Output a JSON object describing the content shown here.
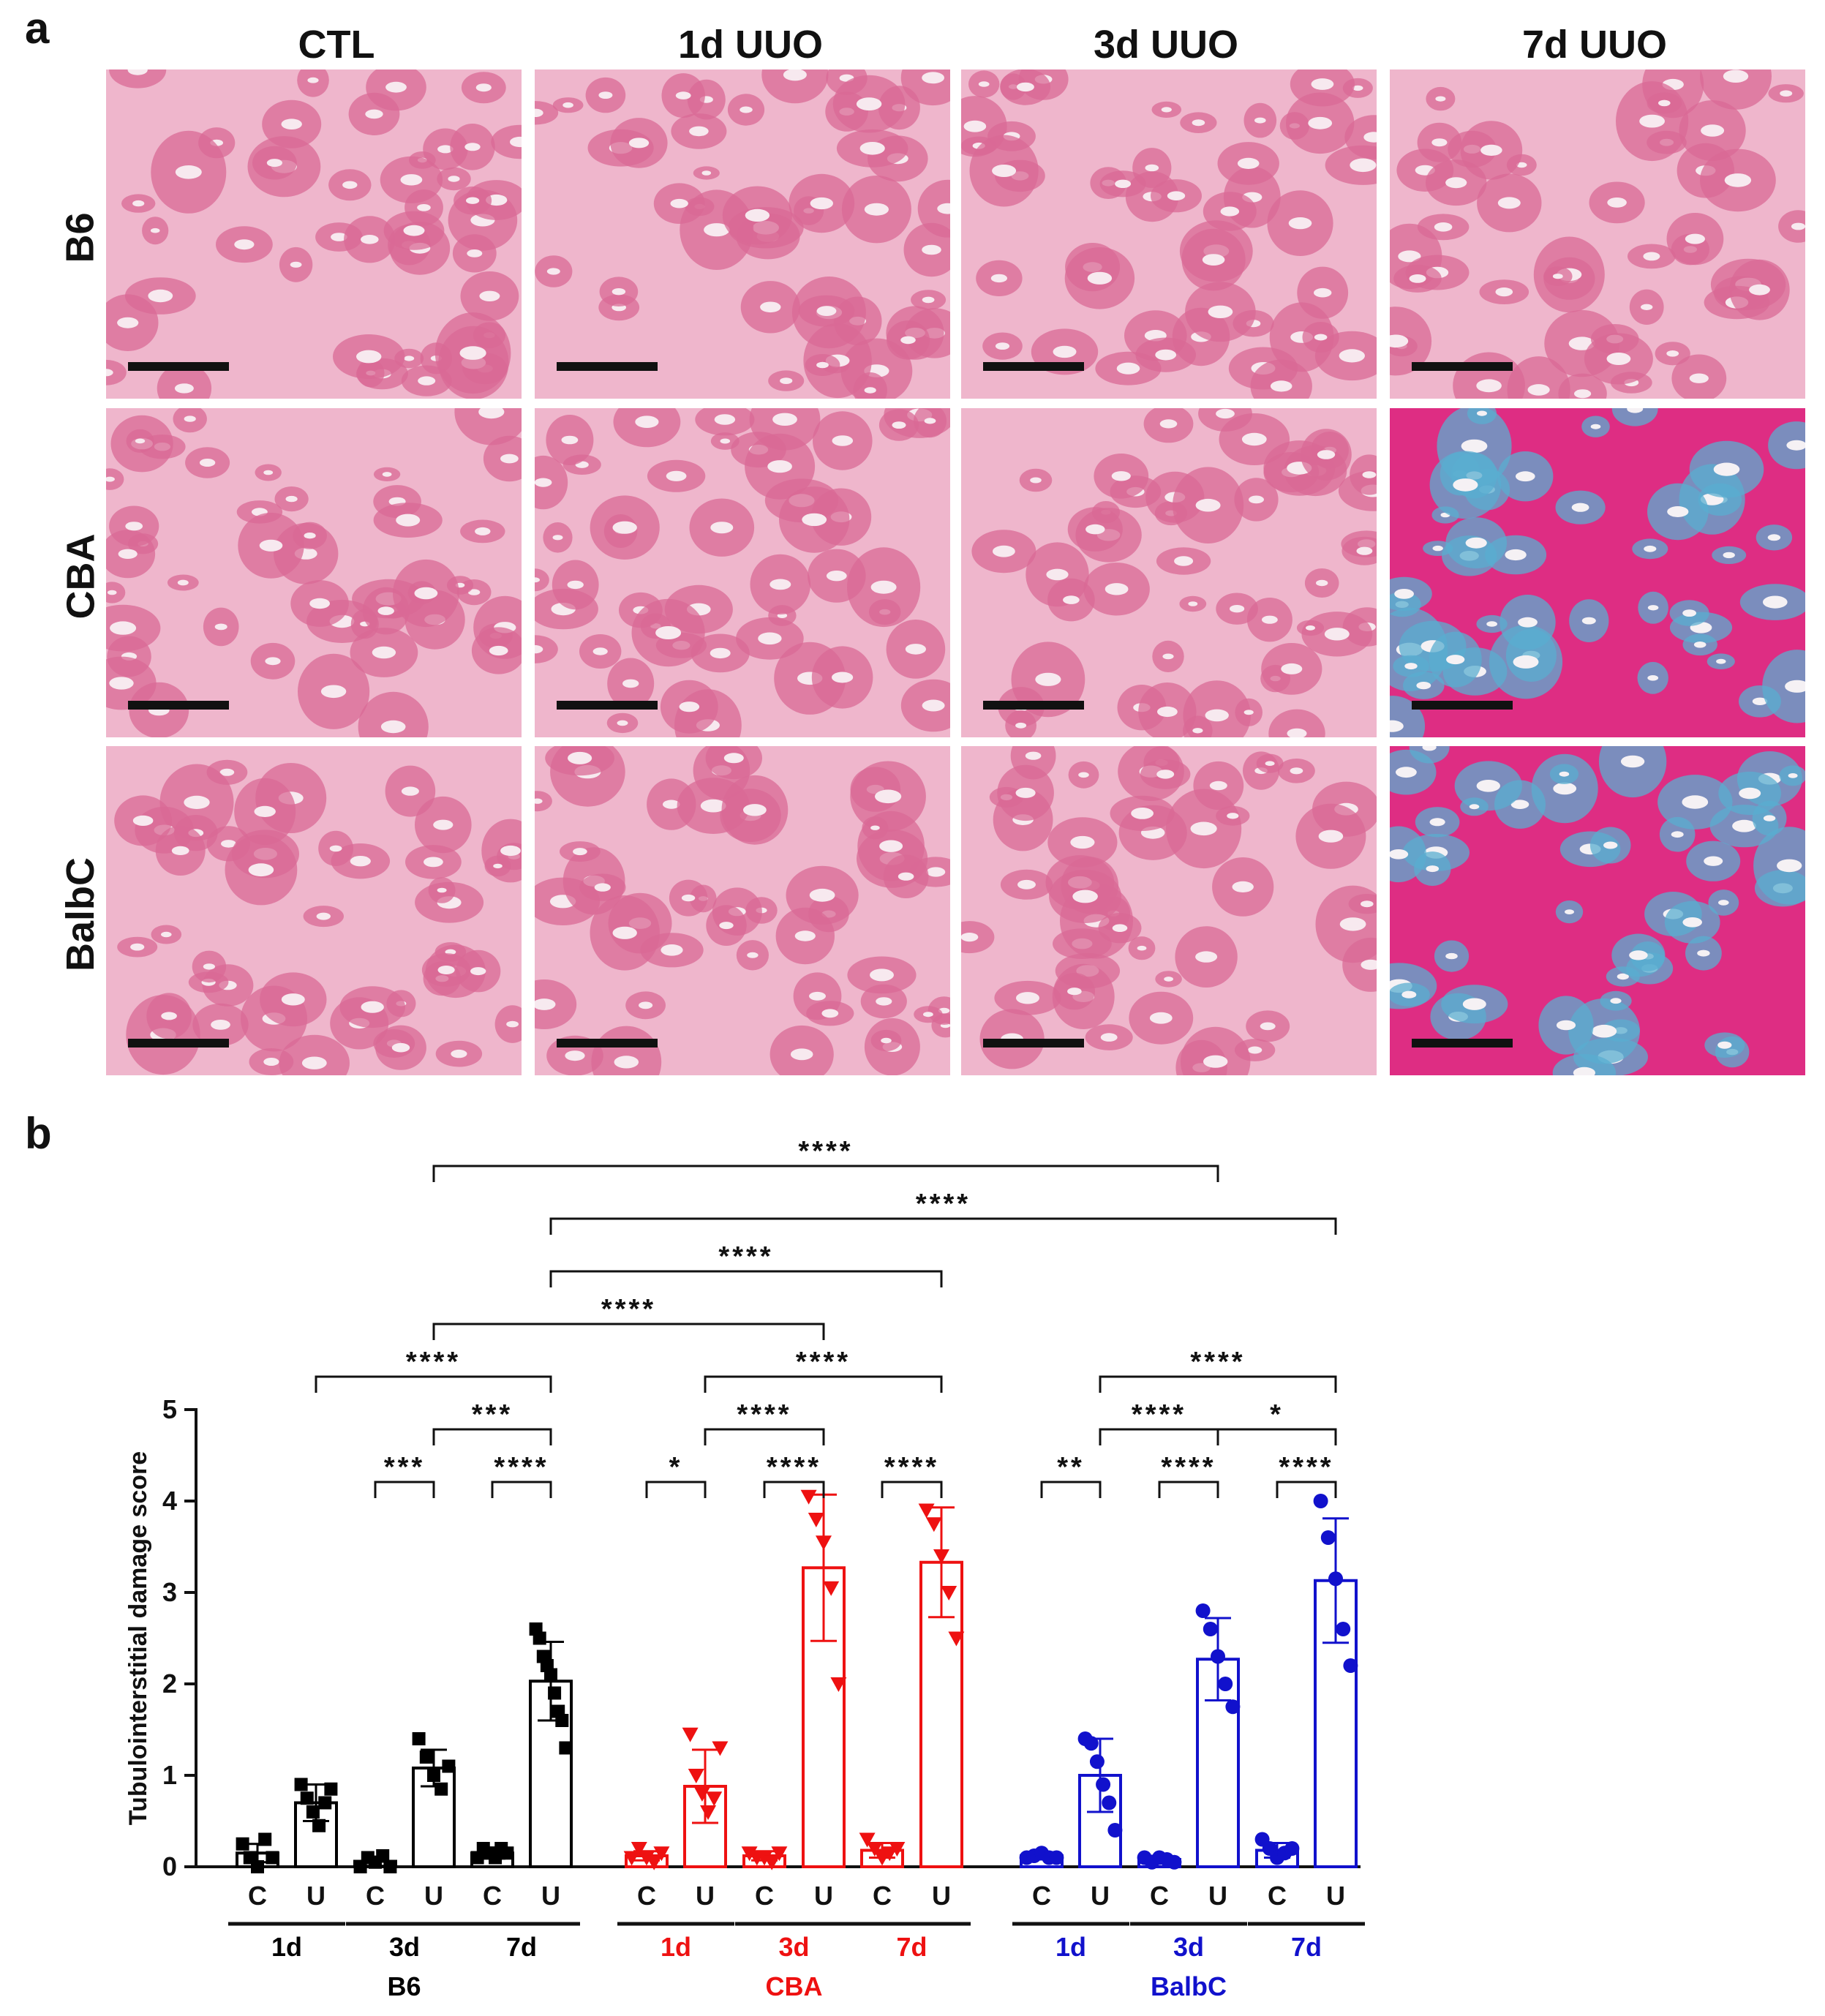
{
  "panel_a": {
    "letter": "a",
    "columns": [
      "CTL",
      "1d UUO",
      "3d UUO",
      "7d UUO"
    ],
    "rows": [
      "B6",
      "CBA",
      "BalbC"
    ],
    "palette": {
      "normal": [
        "#efb6cc",
        "#d96a96",
        "#f7e9ef"
      ],
      "fibrotic": [
        "#de2d83",
        "#5aaed0",
        "#f5f1f4"
      ]
    }
  },
  "chart_data": {
    "letter": "b",
    "type": "bar",
    "ylabel": "Tubulointerstitial damage score",
    "ylim": [
      0,
      5
    ],
    "yticks": [
      0,
      1,
      2,
      3,
      4,
      5
    ],
    "groups": [
      {
        "name": "B6",
        "color": "#000000",
        "marker": "square",
        "timepoints": [
          "1d",
          "3d",
          "7d"
        ]
      },
      {
        "name": "CBA",
        "color": "#ee1111",
        "marker": "triangle",
        "timepoints": [
          "1d",
          "3d",
          "7d"
        ]
      },
      {
        "name": "BalbC",
        "color": "#1111cc",
        "marker": "circle",
        "timepoints": [
          "1d",
          "3d",
          "7d"
        ]
      }
    ],
    "bar_labels": [
      "C",
      "U"
    ],
    "bars": [
      {
        "group": "B6",
        "timepoint": "1d",
        "kind": "C",
        "mean": 0.15,
        "sd": 0.1,
        "points": [
          0.25,
          0.1,
          0.0,
          0.3,
          0.1
        ]
      },
      {
        "group": "B6",
        "timepoint": "1d",
        "kind": "U",
        "mean": 0.7,
        "sd": 0.2,
        "points": [
          0.9,
          0.75,
          0.6,
          0.45,
          0.7,
          0.85
        ]
      },
      {
        "group": "B6",
        "timepoint": "3d",
        "kind": "C",
        "mean": 0.06,
        "sd": 0.05,
        "points": [
          0.0,
          0.1,
          0.05,
          0.12,
          0.0
        ]
      },
      {
        "group": "B6",
        "timepoint": "3d",
        "kind": "U",
        "mean": 1.08,
        "sd": 0.2,
        "points": [
          1.4,
          1.2,
          1.0,
          0.85,
          1.1
        ]
      },
      {
        "group": "B6",
        "timepoint": "7d",
        "kind": "C",
        "mean": 0.15,
        "sd": 0.06,
        "points": [
          0.1,
          0.2,
          0.15,
          0.1,
          0.2,
          0.15
        ]
      },
      {
        "group": "B6",
        "timepoint": "7d",
        "kind": "U",
        "mean": 2.03,
        "sd": 0.43,
        "points": [
          2.6,
          2.5,
          2.3,
          2.2,
          2.1,
          1.9,
          1.7,
          1.6,
          1.3
        ]
      },
      {
        "group": "CBA",
        "timepoint": "1d",
        "kind": "C",
        "mean": 0.12,
        "sd": 0.05,
        "points": [
          0.1,
          0.2,
          0.1,
          0.05,
          0.15
        ]
      },
      {
        "group": "CBA",
        "timepoint": "1d",
        "kind": "U",
        "mean": 0.88,
        "sd": 0.4,
        "points": [
          1.45,
          1.0,
          0.8,
          0.6,
          0.75,
          1.3
        ]
      },
      {
        "group": "CBA",
        "timepoint": "3d",
        "kind": "C",
        "mean": 0.12,
        "sd": 0.05,
        "points": [
          0.15,
          0.1,
          0.1,
          0.05,
          0.15
        ]
      },
      {
        "group": "CBA",
        "timepoint": "3d",
        "kind": "U",
        "mean": 3.27,
        "sd": 0.8,
        "points": [
          4.05,
          3.8,
          3.55,
          3.05,
          2.0
        ]
      },
      {
        "group": "CBA",
        "timepoint": "7d",
        "kind": "C",
        "mean": 0.18,
        "sd": 0.08,
        "points": [
          0.3,
          0.2,
          0.1,
          0.15,
          0.2
        ]
      },
      {
        "group": "CBA",
        "timepoint": "7d",
        "kind": "U",
        "mean": 3.33,
        "sd": 0.6,
        "points": [
          3.9,
          3.75,
          3.4,
          3.0,
          2.5
        ]
      },
      {
        "group": "BalbC",
        "timepoint": "1d",
        "kind": "C",
        "mean": 0.12,
        "sd": 0.04,
        "points": [
          0.1,
          0.12,
          0.15,
          0.1,
          0.1
        ]
      },
      {
        "group": "BalbC",
        "timepoint": "1d",
        "kind": "U",
        "mean": 1.0,
        "sd": 0.4,
        "points": [
          1.4,
          1.35,
          1.15,
          0.9,
          0.7,
          0.4
        ]
      },
      {
        "group": "BalbC",
        "timepoint": "3d",
        "kind": "C",
        "mean": 0.08,
        "sd": 0.04,
        "points": [
          0.1,
          0.05,
          0.1,
          0.08,
          0.05
        ]
      },
      {
        "group": "BalbC",
        "timepoint": "3d",
        "kind": "U",
        "mean": 2.27,
        "sd": 0.45,
        "points": [
          2.8,
          2.6,
          2.3,
          2.0,
          1.75
        ]
      },
      {
        "group": "BalbC",
        "timepoint": "7d",
        "kind": "C",
        "mean": 0.18,
        "sd": 0.08,
        "points": [
          0.3,
          0.2,
          0.1,
          0.15,
          0.2
        ]
      },
      {
        "group": "BalbC",
        "timepoint": "7d",
        "kind": "U",
        "mean": 3.13,
        "sd": 0.68,
        "points": [
          4.0,
          3.6,
          3.15,
          2.6,
          2.2
        ]
      }
    ],
    "comparisons": [
      {
        "from": 3,
        "to": 15,
        "level": 1,
        "label": "****"
      },
      {
        "from": 5,
        "to": 17,
        "level": 2,
        "label": "****"
      },
      {
        "from": 5,
        "to": 11,
        "level": 3,
        "label": "****"
      },
      {
        "from": 3,
        "to": 9,
        "level": 4,
        "label": "****"
      },
      {
        "from": 1,
        "to": 5,
        "level": 5,
        "label": "****"
      },
      {
        "from": 7,
        "to": 11,
        "level": 5,
        "label": "****"
      },
      {
        "from": 13,
        "to": 17,
        "level": 5,
        "label": "****"
      },
      {
        "from": 3,
        "to": 5,
        "level": 6,
        "label": "***"
      },
      {
        "from": 7,
        "to": 9,
        "level": 6,
        "label": "****"
      },
      {
        "from": 13,
        "to": 15,
        "level": 6,
        "label": "****"
      },
      {
        "from": 15,
        "to": 17,
        "level": 6,
        "label": "*"
      },
      {
        "from": 2,
        "to": 3,
        "level": 7,
        "label": "***"
      },
      {
        "from": 4,
        "to": 5,
        "level": 7,
        "label": "****"
      },
      {
        "from": 6,
        "to": 7,
        "level": 7,
        "label": "*"
      },
      {
        "from": 8,
        "to": 9,
        "level": 7,
        "label": "****"
      },
      {
        "from": 10,
        "to": 11,
        "level": 7,
        "label": "****"
      },
      {
        "from": 12,
        "to": 13,
        "level": 7,
        "label": "**"
      },
      {
        "from": 14,
        "to": 15,
        "level": 7,
        "label": "****"
      },
      {
        "from": 16,
        "to": 17,
        "level": 7,
        "label": "****"
      }
    ]
  }
}
